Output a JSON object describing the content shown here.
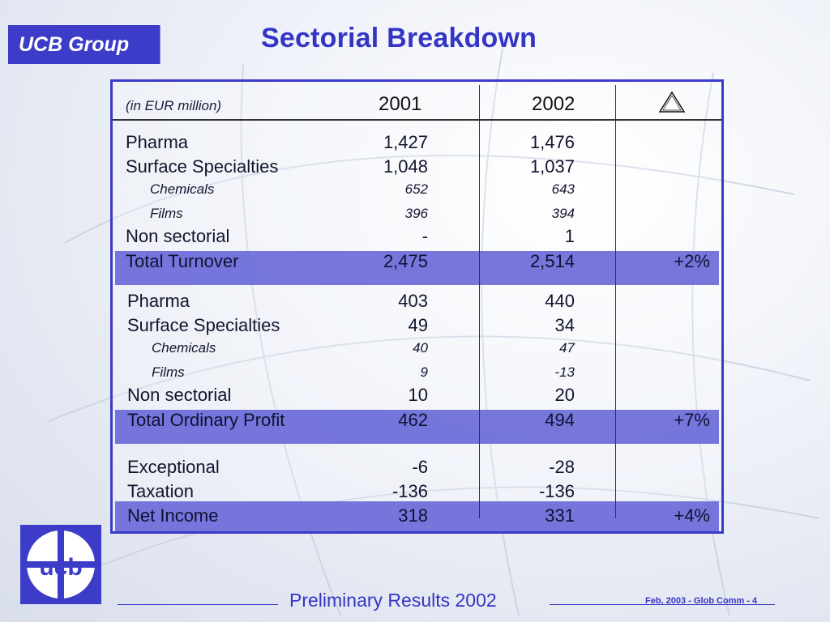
{
  "brand": "UCB Group",
  "title": "Sectorial Breakdown",
  "table": {
    "unit_label": "(in EUR million)",
    "col_2001": "2001",
    "col_2002": "2002",
    "delta_icon": "triangle-icon",
    "turnover_rows": [
      {
        "label": "Pharma",
        "v2001": "1,427",
        "v2002": "1,476",
        "delta": ""
      },
      {
        "label": "Surface Specialties",
        "v2001": "1,048",
        "v2002": "1,037",
        "delta": ""
      },
      {
        "label": "Chemicals",
        "v2001": "652",
        "v2002": "643",
        "delta": ""
      },
      {
        "label": "Films",
        "v2001": "396",
        "v2002": "394",
        "delta": ""
      },
      {
        "label": "Non sectorial",
        "v2001": "-",
        "v2002": "1",
        "delta": ""
      },
      {
        "label": "Total Turnover",
        "v2001": "2,475",
        "v2002": "2,514",
        "delta": "+2%"
      }
    ],
    "profit_rows": [
      {
        "label": "Pharma",
        "v2001": "403",
        "v2002": "440",
        "delta": ""
      },
      {
        "label": "Surface Specialties",
        "v2001": "49",
        "v2002": "34",
        "delta": ""
      },
      {
        "label": "Chemicals",
        "v2001": "40",
        "v2002": "47",
        "delta": ""
      },
      {
        "label": "Films",
        "v2001": "9",
        "v2002": "-13",
        "delta": ""
      },
      {
        "label": "Non sectorial",
        "v2001": "10",
        "v2002": "20",
        "delta": ""
      },
      {
        "label": "Total Ordinary Profit",
        "v2001": "462",
        "v2002": "494",
        "delta": "+7%"
      }
    ],
    "income_rows": [
      {
        "label": "Exceptional",
        "v2001": "-6",
        "v2002": "-28",
        "delta": ""
      },
      {
        "label": "Taxation",
        "v2001": "-136",
        "v2002": "-136",
        "delta": ""
      },
      {
        "label": "Net Income",
        "v2001": "318",
        "v2002": "331",
        "delta": "+4%"
      }
    ]
  },
  "logo_text": "ucb",
  "footer": {
    "title": "Preliminary  Results 2002",
    "note": "Feb, 2003 - Glob Comm - 4"
  },
  "colors": {
    "accent": "#3535c5",
    "band": "#6a6ad8",
    "brand_bg": "#3c3cc8"
  }
}
